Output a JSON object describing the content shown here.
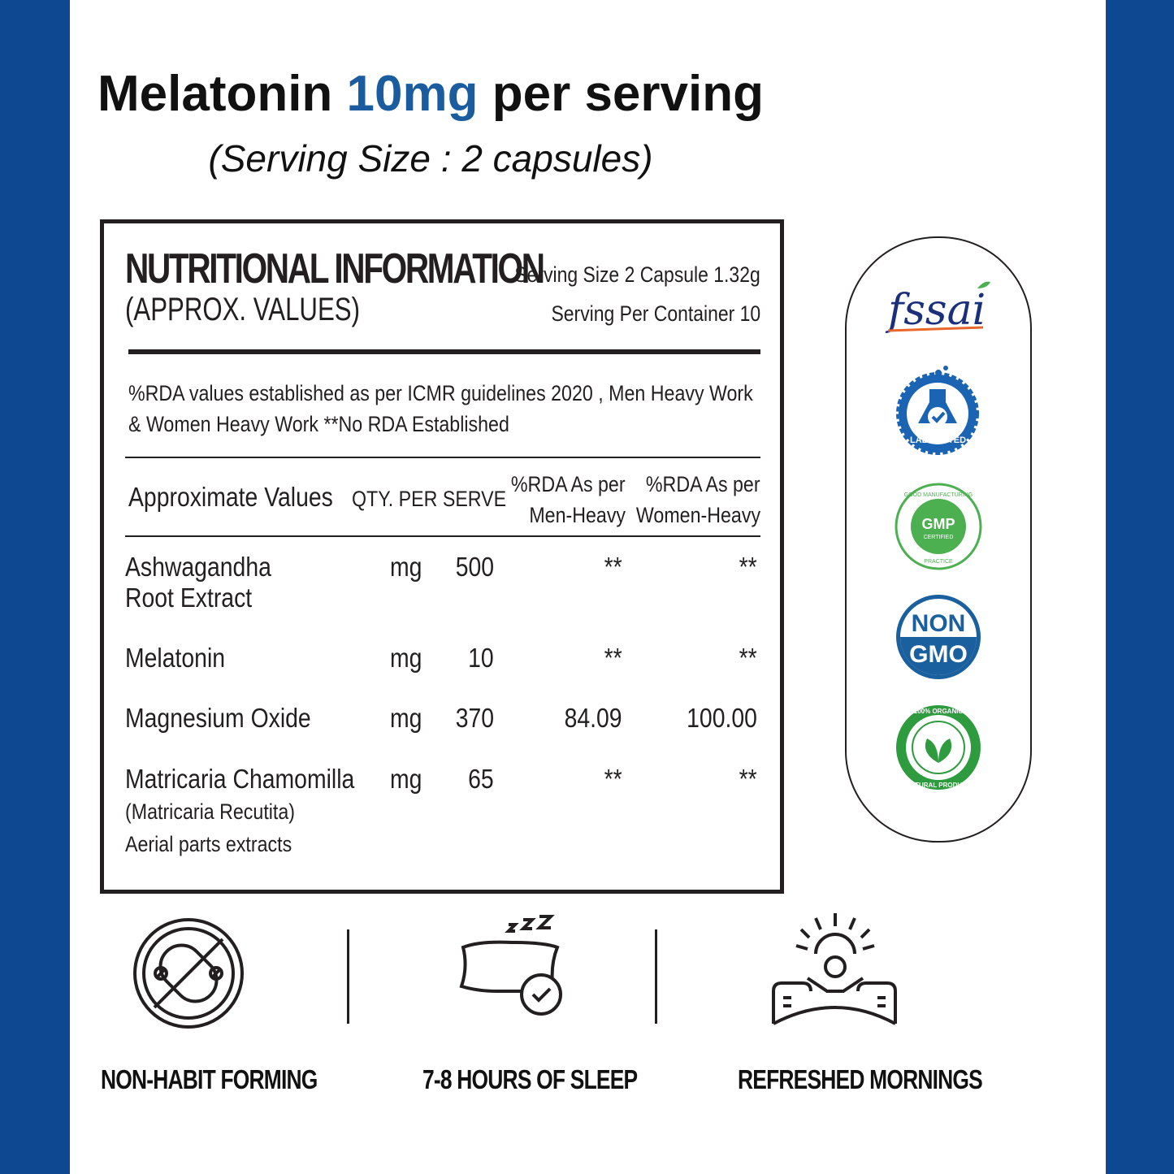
{
  "heading": {
    "prefix": "Melatonin ",
    "accent": "10mg",
    "suffix": " per serving",
    "subtitle": "(Serving Size : 2 capsules)"
  },
  "panel": {
    "title": "NUTRITIONAL INFORMATION",
    "subtitle": "(APPROX. VALUES)",
    "serving_size": "Serving Size 2 Capsule 1.32g",
    "serving_per_container": "Serving Per Container 10",
    "note": "%RDA values established as per ICMR guidelines 2020 , Men Heavy Work & Women Heavy Work **No RDA Established",
    "columns": {
      "name": "Approximate Values",
      "qty": "QTY. PER SERVE",
      "men_1": "%RDA As per",
      "men_2": "Men-Heavy",
      "women_1": "%RDA As per",
      "women_2": "Women-Heavy"
    },
    "rows": [
      {
        "name": "Ashwagandha",
        "name2": "Root Extract",
        "unit": "mg",
        "qty": "500",
        "men": "**",
        "women": "**"
      },
      {
        "name": "Melatonin",
        "unit": "mg",
        "qty": "10",
        "men": "**",
        "women": "**"
      },
      {
        "name": "Magnesium Oxide",
        "unit": "mg",
        "qty": "370",
        "men": "84.09",
        "women": "100.00"
      },
      {
        "name": "Matricaria Chamomilla",
        "name2": "(Matricaria Recutita)",
        "name3": "Aerial parts extracts",
        "unit": "mg",
        "qty": "65",
        "men": "**",
        "women": "**"
      }
    ]
  },
  "badges": {
    "fssai": "fssai",
    "lab_tested": "LAB TESTED",
    "gmp": "GMP",
    "gmp_certified": "CERTIFIED",
    "gmp_ring_top": "GOOD MANUFACTURING",
    "gmp_ring_bottom": "PRACTICE",
    "non": "NON",
    "gmo": "GMO",
    "organic_top": "100% ORGANIC",
    "organic_bottom": "NATURAL PRODUCT"
  },
  "features": [
    {
      "label": "NON-HABIT FORMING",
      "icon": "no-pill-icon"
    },
    {
      "label": "7-8 HOURS OF SLEEP",
      "icon": "pillow-sleep-icon"
    },
    {
      "label": "REFRESHED MORNINGS",
      "icon": "sunrise-wakeup-icon"
    }
  ],
  "colors": {
    "brand_blue": "#0d4890",
    "accent_blue": "#1b5c9e",
    "text_dark": "#231f20",
    "gmp_green": "#4caf50",
    "organic_green": "#2e9b3e"
  }
}
